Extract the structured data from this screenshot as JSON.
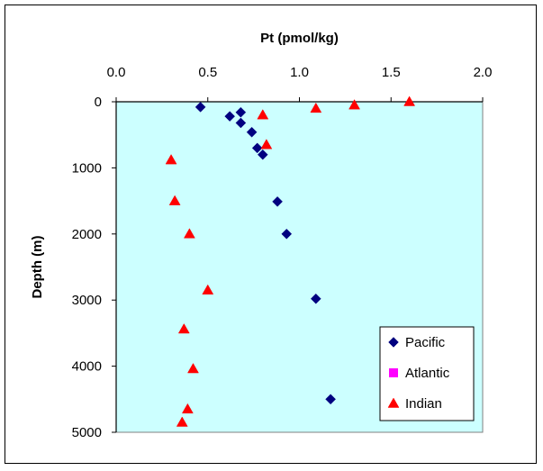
{
  "chart_data": {
    "type": "scatter",
    "title": "Pt (pmol/kg)",
    "xlabel": "Pt (pmol/kg)",
    "ylabel": "Depth (m)",
    "xlim": [
      0.0,
      2.0
    ],
    "ylim": [
      0,
      5000
    ],
    "y_inverted": true,
    "x_axis_position": "top",
    "x_ticks": [
      "0.0",
      "0.5",
      "1.0",
      "1.5",
      "2.0"
    ],
    "y_ticks": [
      "0",
      "1000",
      "2000",
      "3000",
      "4000",
      "5000"
    ],
    "grid": false,
    "plot_background": "#ccffff",
    "legend_position": "bottom-right",
    "series": [
      {
        "name": "Pacific",
        "marker": "diamond",
        "color": "#000080",
        "points": [
          {
            "x": 0.46,
            "y": 80
          },
          {
            "x": 0.62,
            "y": 220
          },
          {
            "x": 0.68,
            "y": 160
          },
          {
            "x": 0.68,
            "y": 320
          },
          {
            "x": 0.74,
            "y": 460
          },
          {
            "x": 0.77,
            "y": 700
          },
          {
            "x": 0.8,
            "y": 800
          },
          {
            "x": 0.88,
            "y": 1510
          },
          {
            "x": 0.93,
            "y": 2000
          },
          {
            "x": 1.09,
            "y": 2980
          },
          {
            "x": 1.17,
            "y": 4500
          }
        ]
      },
      {
        "name": "Atlantic",
        "marker": "square",
        "color": "#ff00ff",
        "points": []
      },
      {
        "name": "Indian",
        "marker": "triangle",
        "color": "#ff0000",
        "points": [
          {
            "x": 1.6,
            "y": 0
          },
          {
            "x": 1.3,
            "y": 50
          },
          {
            "x": 1.09,
            "y": 100
          },
          {
            "x": 0.8,
            "y": 200
          },
          {
            "x": 0.82,
            "y": 650
          },
          {
            "x": 0.3,
            "y": 880
          },
          {
            "x": 0.32,
            "y": 1500
          },
          {
            "x": 0.4,
            "y": 2000
          },
          {
            "x": 0.5,
            "y": 2850
          },
          {
            "x": 0.37,
            "y": 3440
          },
          {
            "x": 0.42,
            "y": 4040
          },
          {
            "x": 0.39,
            "y": 4650
          },
          {
            "x": 0.36,
            "y": 4850
          }
        ]
      }
    ]
  }
}
